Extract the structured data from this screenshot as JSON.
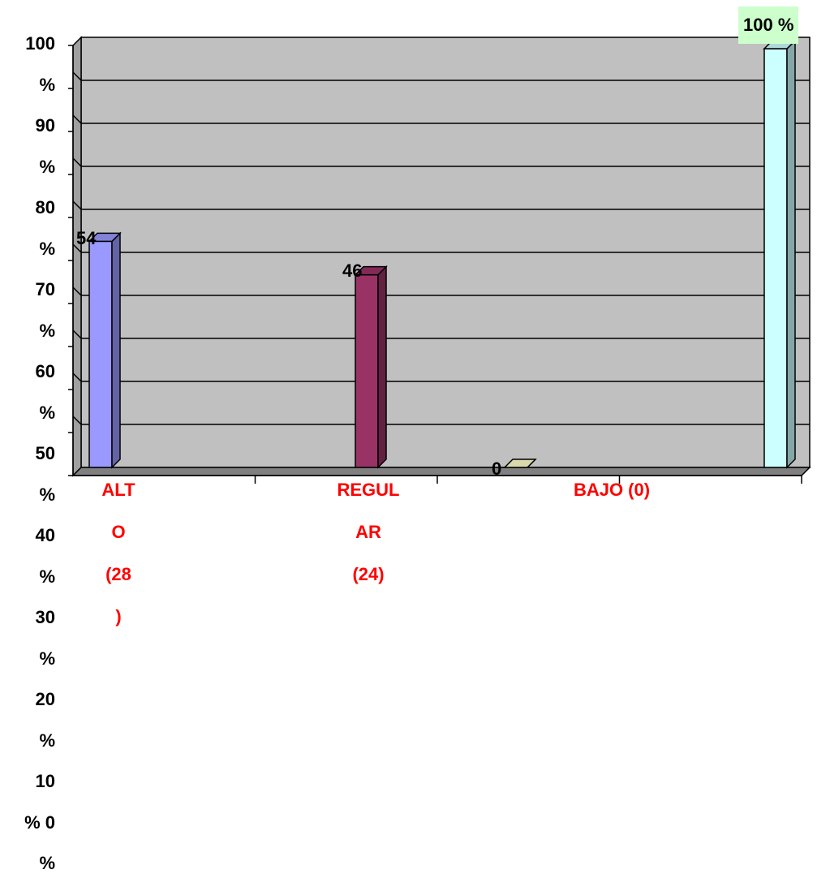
{
  "chart_data": {
    "type": "bar",
    "title": "",
    "xlabel": "",
    "ylabel": "",
    "categories": [
      "ALTO (28)",
      "REGULAR (24)",
      "BAJO (0)",
      ""
    ],
    "values": [
      54,
      46,
      0,
      100
    ],
    "data_labels": [
      "54",
      "46",
      "0",
      "100 %"
    ],
    "bar_colors": [
      "#9999ff",
      "#993366",
      "#ffffcc",
      "#ccffff"
    ],
    "category_label_lines": [
      [
        "ALT",
        "O",
        "(28",
        ")"
      ],
      [
        "REGUL",
        "AR",
        "(24)"
      ],
      [
        "BAJO (0)"
      ],
      []
    ],
    "y_tick_lines": [
      "100",
      "%",
      "90",
      "%",
      "80",
      "%",
      "70",
      "%",
      "60",
      "%",
      "50",
      "%",
      "40",
      "%",
      "30",
      "%",
      "20",
      "%",
      "10",
      "% 0",
      "%"
    ],
    "grid": true,
    "plot_background": "#c0c0c0",
    "category_label_color": "#ff0000",
    "highlight_label_background": "#ccffcc"
  }
}
